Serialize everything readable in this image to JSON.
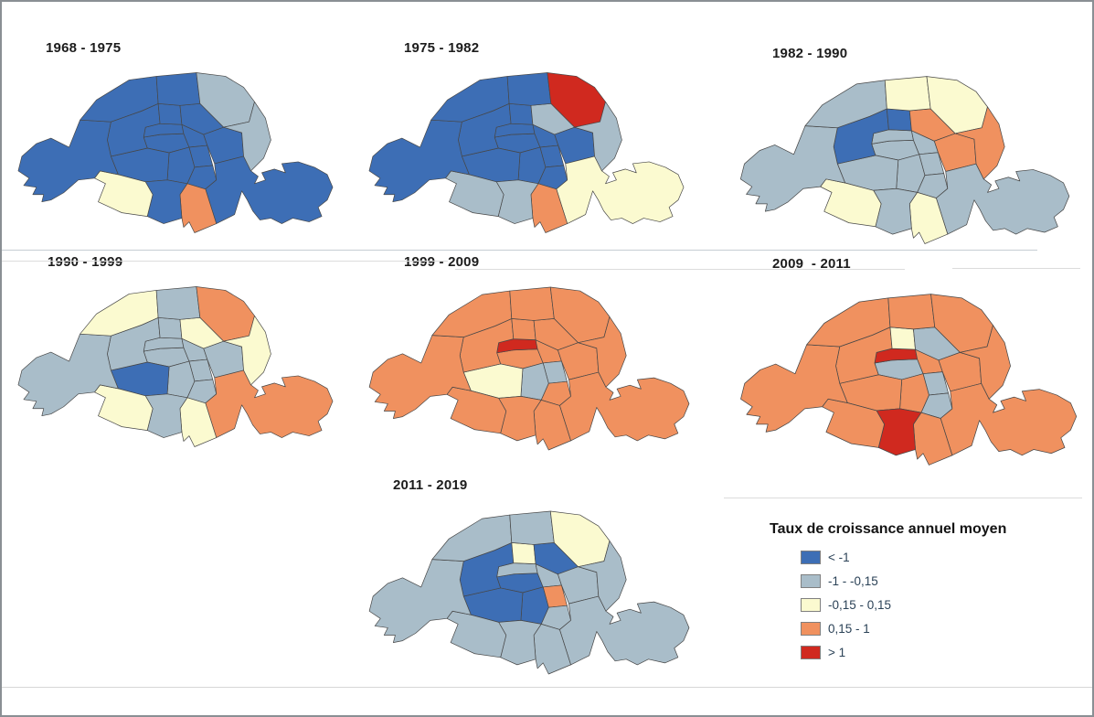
{
  "page": {
    "background": "#ffffff",
    "border_color": "#8a8f94"
  },
  "maps": [
    {
      "title": "1968 - 1975",
      "classes": [
        "B",
        "B",
        "B",
        "B",
        "B",
        "B",
        "B",
        "B",
        "B",
        "B",
        "B",
        "B",
        "O",
        "B",
        "Y",
        "B",
        "B",
        "B",
        "G",
        "G"
      ]
    },
    {
      "title": "1975 - 1982",
      "classes": [
        "B",
        "B",
        "B",
        "B",
        "B",
        "B",
        "B",
        "B",
        "B",
        "G",
        "B",
        "Y",
        "O",
        "G",
        "G",
        "B",
        "B",
        "B",
        "R",
        "G"
      ]
    },
    {
      "title": "1982 - 1990",
      "classes": [
        "G",
        "G",
        "G",
        "G",
        "G",
        "G",
        "G",
        "B",
        "B",
        "O",
        "O",
        "G",
        "Y",
        "G",
        "Y",
        "G",
        "G",
        "Y",
        "Y",
        "O"
      ]
    },
    {
      "title": "1990 - 1999",
      "classes": [
        "G",
        "G",
        "G",
        "G",
        "G",
        "G",
        "B",
        "G",
        "G",
        "Y",
        "G",
        "O",
        "Y",
        "G",
        "Y",
        "G",
        "Y",
        "G",
        "O",
        "Y"
      ]
    },
    {
      "title": "1999 - 2009",
      "classes": [
        "O",
        "R",
        "O",
        "G",
        "O",
        "G",
        "Y",
        "O",
        "O",
        "O",
        "O",
        "O",
        "O",
        "O",
        "O",
        "O",
        "O",
        "O",
        "O",
        "O"
      ]
    },
    {
      "title": "2009  - 2011",
      "classes": [
        "G",
        "R",
        "O",
        "G",
        "G",
        "O",
        "O",
        "O",
        "Y",
        "G",
        "O",
        "O",
        "O",
        "R",
        "O",
        "O",
        "O",
        "O",
        "O",
        "O"
      ]
    },
    {
      "title": "2011 - 2019",
      "classes": [
        "B",
        "G",
        "G",
        "O",
        "G",
        "B",
        "B",
        "B",
        "Y",
        "B",
        "G",
        "G",
        "G",
        "G",
        "G",
        "G",
        "G",
        "G",
        "Y",
        "G"
      ]
    }
  ],
  "legend": {
    "title": "Taux de croissance annuel moyen",
    "classes": [
      {
        "code": "B",
        "label": "< -1",
        "color": "#3d6eb5"
      },
      {
        "code": "G",
        "label": "-1 - -0,15",
        "color": "#a9bdc9"
      },
      {
        "code": "Y",
        "label": "-0,15 - 0,15",
        "color": "#fbfad0"
      },
      {
        "code": "O",
        "label": "0,15 - 1",
        "color": "#f0915f"
      },
      {
        "code": "R",
        "label": "> 1",
        "color": "#d0291f"
      }
    ]
  },
  "chart_data": {
    "type": "choropleth",
    "title": "Taux de croissance annuel moyen",
    "geography": "Paris arrondissements 1-20 (incl. Bois de Boulogne and Bois de Vincennes wings)",
    "periods": [
      "1968 - 1975",
      "1975 - 1982",
      "1982 - 1990",
      "1990 - 1999",
      "1999 - 2009",
      "2009  - 2011",
      "2011 - 2019"
    ],
    "class_labels": [
      "< -1",
      "-1 - -0,15",
      "-0,15 - 0,15",
      "0,15 - 1",
      "> 1"
    ],
    "encoding_note": "maps[i].classes gives the growth-rate class code (B,G,Y,O,R) for arrondissements 1 to 20 in order"
  }
}
